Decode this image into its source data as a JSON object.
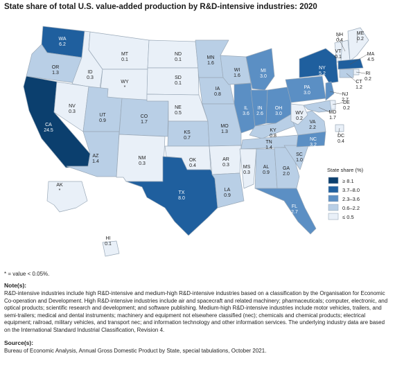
{
  "title": "State share of total U.S. value-added production by R&D-intensive industries: 2020",
  "legend": {
    "title": "State share (%)",
    "bins": [
      {
        "label": "≥ 8.1",
        "color": "#0b3f6e"
      },
      {
        "label": "3.7–8.0",
        "color": "#1f5f9e"
      },
      {
        "label": "2.3–3.6",
        "color": "#5b8fc4"
      },
      {
        "label": "0.6–2.2",
        "color": "#b9cfe6"
      },
      {
        "label": "≤ 0.5",
        "color": "#e9f0f8"
      }
    ]
  },
  "states": [
    {
      "abbr": "WA",
      "value": "6.2",
      "bin": 1
    },
    {
      "abbr": "OR",
      "value": "1.3",
      "bin": 3
    },
    {
      "abbr": "CA",
      "value": "24.5",
      "bin": 0
    },
    {
      "abbr": "ID",
      "value": "0.3",
      "bin": 4
    },
    {
      "abbr": "NV",
      "value": "0.3",
      "bin": 4
    },
    {
      "abbr": "MT",
      "value": "0.1",
      "bin": 4
    },
    {
      "abbr": "WY",
      "value": "*",
      "bin": 4
    },
    {
      "abbr": "UT",
      "value": "0.9",
      "bin": 3
    },
    {
      "abbr": "AZ",
      "value": "1.4",
      "bin": 3
    },
    {
      "abbr": "CO",
      "value": "1.7",
      "bin": 3
    },
    {
      "abbr": "NM",
      "value": "0.3",
      "bin": 4
    },
    {
      "abbr": "ND",
      "value": "0.1",
      "bin": 4
    },
    {
      "abbr": "SD",
      "value": "0.1",
      "bin": 4
    },
    {
      "abbr": "NE",
      "value": "0.5",
      "bin": 4
    },
    {
      "abbr": "KS",
      "value": "0.7",
      "bin": 3
    },
    {
      "abbr": "OK",
      "value": "0.4",
      "bin": 4
    },
    {
      "abbr": "TX",
      "value": "8.0",
      "bin": 1
    },
    {
      "abbr": "MN",
      "value": "1.6",
      "bin": 3
    },
    {
      "abbr": "IA",
      "value": "0.8",
      "bin": 3
    },
    {
      "abbr": "MO",
      "value": "1.3",
      "bin": 3
    },
    {
      "abbr": "AR",
      "value": "0.3",
      "bin": 4
    },
    {
      "abbr": "LA",
      "value": "0.9",
      "bin": 3
    },
    {
      "abbr": "WI",
      "value": "1.6",
      "bin": 3
    },
    {
      "abbr": "IL",
      "value": "3.6",
      "bin": 2
    },
    {
      "abbr": "MI",
      "value": "3.0",
      "bin": 2
    },
    {
      "abbr": "IN",
      "value": "2.6",
      "bin": 2
    },
    {
      "abbr": "OH",
      "value": "3.0",
      "bin": 2
    },
    {
      "abbr": "KY",
      "value": "0.8",
      "bin": 3
    },
    {
      "abbr": "TN",
      "value": "1.4",
      "bin": 3
    },
    {
      "abbr": "MS",
      "value": "0.3",
      "bin": 4
    },
    {
      "abbr": "AL",
      "value": "0.9",
      "bin": 3
    },
    {
      "abbr": "GA",
      "value": "2.0",
      "bin": 3
    },
    {
      "abbr": "FL",
      "value": "2.7",
      "bin": 2
    },
    {
      "abbr": "SC",
      "value": "1.0",
      "bin": 3
    },
    {
      "abbr": "NC",
      "value": "3.2",
      "bin": 2
    },
    {
      "abbr": "VA",
      "value": "2.2",
      "bin": 3
    },
    {
      "abbr": "WV",
      "value": "0.2",
      "bin": 4
    },
    {
      "abbr": "PA",
      "value": "3.0",
      "bin": 2
    },
    {
      "abbr": "NY",
      "value": "5.2",
      "bin": 1
    },
    {
      "abbr": "VT",
      "value": "0.1",
      "bin": 4
    },
    {
      "abbr": "NH",
      "value": "0.4",
      "bin": 4
    },
    {
      "abbr": "ME",
      "value": "0.2",
      "bin": 4
    },
    {
      "abbr": "MA",
      "value": "4.5",
      "bin": 1
    },
    {
      "abbr": "RI",
      "value": "0.2",
      "bin": 4
    },
    {
      "abbr": "CT",
      "value": "1.2",
      "bin": 3
    },
    {
      "abbr": "NJ",
      "value": "2.7",
      "bin": 2
    },
    {
      "abbr": "DE",
      "value": "0.2",
      "bin": 4
    },
    {
      "abbr": "MD",
      "value": "1.7",
      "bin": 3
    },
    {
      "abbr": "DC",
      "value": "0.4",
      "bin": 4
    },
    {
      "abbr": "AK",
      "value": "*",
      "bin": 4
    },
    {
      "abbr": "HI",
      "value": "0.1",
      "bin": 4
    }
  ],
  "footnote": "* = value < 0.05%.",
  "notes_heading": "Note(s):",
  "notes_text": "R&D-intensive industries include high R&D-intensive and medium-high R&D-intensive industries based on a classification by the Organisation for Economic Co-operation and Development. High R&D-intensive industries include air and spacecraft and related machinery; pharmaceuticals; computer, electronic, and optical products; scientific research and development; and software publishing. Medium-high R&D-intensive industries include motor vehicles, trailers, and semi-trailers; medical and dental instruments; machinery and equipment not elsewhere classified (nec); chemicals and chemical products; electrical equipment; railroad, military vehicles, and transport nec; and information technology and other information services. The underlying industry data are based on the International Standard Industrial Classification, Revision 4.",
  "source_heading": "Source(s):",
  "source_text": "Bureau of Economic Analysis, Annual Gross Domestic Product by State, special tabulations, October 2021."
}
